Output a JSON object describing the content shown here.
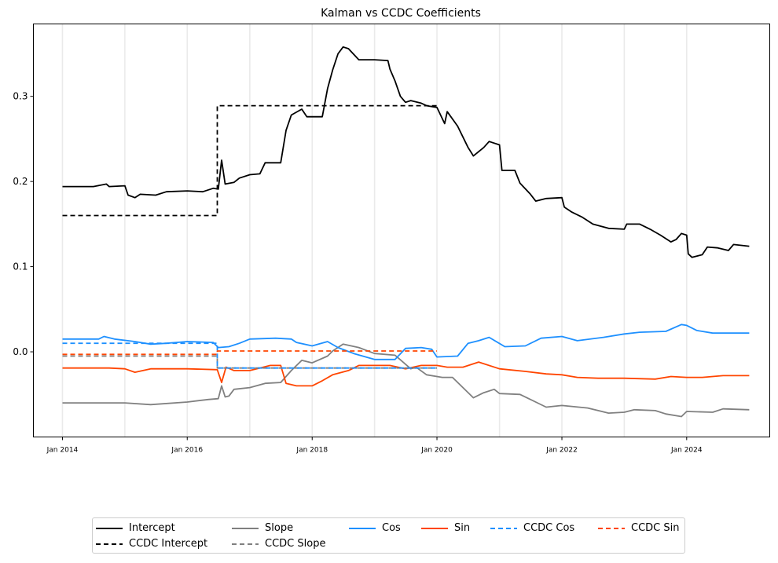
{
  "chart_data": {
    "type": "line",
    "title": "Kalman vs CCDC Coefficients",
    "xlabel": "",
    "ylabel": "",
    "x_range": [
      "2013-07-15",
      "2025-05-01"
    ],
    "ylim": [
      -0.1,
      0.385
    ],
    "yticks": [
      0.0,
      0.1,
      0.2,
      0.3
    ],
    "ytick_labels": [
      "0.0",
      "0.1",
      "0.2",
      "0.3"
    ],
    "xticks": [
      "2014-01-01",
      "2016-01-01",
      "2018-01-01",
      "2020-01-01",
      "2022-01-01",
      "2024-01-01"
    ],
    "xtick_labels": [
      "Jan 2014",
      "Jan 2016",
      "Jan 2018",
      "Jan 2020",
      "Jan 2022",
      "Jan 2024"
    ],
    "vlines": [
      "2014-01-01",
      "2015-01-01",
      "2016-01-01",
      "2017-01-01",
      "2018-01-01",
      "2019-01-01",
      "2020-01-01",
      "2021-01-01",
      "2022-01-01",
      "2023-01-01",
      "2024-01-01"
    ],
    "legend_placement": "bottom-center",
    "series": [
      {
        "name": "Intercept",
        "color": "#000000",
        "dash": false,
        "points": [
          [
            "2014-01-01",
            0.194
          ],
          [
            "2014-07-01",
            0.194
          ],
          [
            "2014-09-15",
            0.197
          ],
          [
            "2014-10-01",
            0.194
          ],
          [
            "2015-01-01",
            0.195
          ],
          [
            "2015-01-20",
            0.184
          ],
          [
            "2015-03-01",
            0.181
          ],
          [
            "2015-04-01",
            0.185
          ],
          [
            "2015-07-01",
            0.184
          ],
          [
            "2015-09-01",
            0.188
          ],
          [
            "2016-01-01",
            0.189
          ],
          [
            "2016-04-01",
            0.188
          ],
          [
            "2016-06-01",
            0.192
          ],
          [
            "2016-07-01",
            0.191
          ],
          [
            "2016-07-20",
            0.225
          ],
          [
            "2016-08-10",
            0.197
          ],
          [
            "2016-10-01",
            0.199
          ],
          [
            "2016-11-01",
            0.204
          ],
          [
            "2017-01-01",
            0.208
          ],
          [
            "2017-03-01",
            0.209
          ],
          [
            "2017-04-01",
            0.222
          ],
          [
            "2017-07-01",
            0.222
          ],
          [
            "2017-08-01",
            0.26
          ],
          [
            "2017-09-01",
            0.278
          ],
          [
            "2017-11-01",
            0.285
          ],
          [
            "2017-12-01",
            0.276
          ],
          [
            "2018-03-01",
            0.276
          ],
          [
            "2018-04-01",
            0.309
          ],
          [
            "2018-05-01",
            0.331
          ],
          [
            "2018-06-01",
            0.35
          ],
          [
            "2018-07-01",
            0.358
          ],
          [
            "2018-08-01",
            0.356
          ],
          [
            "2018-10-01",
            0.343
          ],
          [
            "2019-01-01",
            0.343
          ],
          [
            "2019-03-20",
            0.342
          ],
          [
            "2019-04-01",
            0.332
          ],
          [
            "2019-05-01",
            0.318
          ],
          [
            "2019-06-01",
            0.3
          ],
          [
            "2019-07-01",
            0.293
          ],
          [
            "2019-08-01",
            0.295
          ],
          [
            "2019-10-01",
            0.292
          ],
          [
            "2019-11-01",
            0.289
          ],
          [
            "2020-01-01",
            0.287
          ],
          [
            "2020-02-15",
            0.268
          ],
          [
            "2020-03-01",
            0.282
          ],
          [
            "2020-05-01",
            0.265
          ],
          [
            "2020-07-01",
            0.24
          ],
          [
            "2020-08-01",
            0.23
          ],
          [
            "2020-10-01",
            0.24
          ],
          [
            "2020-11-01",
            0.247
          ],
          [
            "2021-01-01",
            0.243
          ],
          [
            "2021-01-15",
            0.213
          ],
          [
            "2021-04-01",
            0.213
          ],
          [
            "2021-05-01",
            0.198
          ],
          [
            "2021-07-01",
            0.185
          ],
          [
            "2021-08-01",
            0.177
          ],
          [
            "2021-10-01",
            0.18
          ],
          [
            "2022-01-01",
            0.181
          ],
          [
            "2022-01-15",
            0.17
          ],
          [
            "2022-03-01",
            0.164
          ],
          [
            "2022-05-01",
            0.158
          ],
          [
            "2022-07-01",
            0.15
          ],
          [
            "2022-10-01",
            0.145
          ],
          [
            "2023-01-01",
            0.144
          ],
          [
            "2023-01-15",
            0.15
          ],
          [
            "2023-04-01",
            0.15
          ],
          [
            "2023-06-01",
            0.144
          ],
          [
            "2023-08-01",
            0.137
          ],
          [
            "2023-10-01",
            0.129
          ],
          [
            "2023-11-01",
            0.132
          ],
          [
            "2023-12-01",
            0.139
          ],
          [
            "2024-01-01",
            0.137
          ],
          [
            "2024-01-10",
            0.115
          ],
          [
            "2024-02-01",
            0.111
          ],
          [
            "2024-04-01",
            0.114
          ],
          [
            "2024-05-01",
            0.123
          ],
          [
            "2024-07-01",
            0.122
          ],
          [
            "2024-09-01",
            0.119
          ],
          [
            "2024-10-01",
            0.126
          ],
          [
            "2025-01-01",
            0.124
          ]
        ]
      },
      {
        "name": "CCDC Intercept",
        "color": "#000000",
        "dash": true,
        "points": [
          [
            "2014-01-01",
            0.16
          ],
          [
            "2016-06-25",
            0.16
          ],
          [
            "2016-06-25",
            0.289
          ],
          [
            "2020-01-01",
            0.289
          ]
        ]
      },
      {
        "name": "Slope",
        "color": "#808080",
        "dash": false,
        "points": [
          [
            "2014-01-01",
            -0.06
          ],
          [
            "2014-10-01",
            -0.06
          ],
          [
            "2015-01-01",
            -0.06
          ],
          [
            "2015-06-01",
            -0.062
          ],
          [
            "2016-01-01",
            -0.059
          ],
          [
            "2016-05-01",
            -0.056
          ],
          [
            "2016-07-01",
            -0.055
          ],
          [
            "2016-07-20",
            -0.04
          ],
          [
            "2016-08-10",
            -0.053
          ],
          [
            "2016-09-01",
            -0.052
          ],
          [
            "2016-10-01",
            -0.044
          ],
          [
            "2017-01-01",
            -0.042
          ],
          [
            "2017-04-01",
            -0.037
          ],
          [
            "2017-07-01",
            -0.036
          ],
          [
            "2017-09-01",
            -0.022
          ],
          [
            "2017-11-01",
            -0.01
          ],
          [
            "2018-01-01",
            -0.013
          ],
          [
            "2018-04-01",
            -0.005
          ],
          [
            "2018-05-01",
            0.001
          ],
          [
            "2018-07-01",
            0.009
          ],
          [
            "2018-10-01",
            0.005
          ],
          [
            "2019-01-01",
            -0.002
          ],
          [
            "2019-05-01",
            -0.004
          ],
          [
            "2019-08-01",
            -0.02
          ],
          [
            "2019-09-01",
            -0.018
          ],
          [
            "2019-11-01",
            -0.027
          ],
          [
            "2020-02-01",
            -0.03
          ],
          [
            "2020-04-01",
            -0.03
          ],
          [
            "2020-06-01",
            -0.042
          ],
          [
            "2020-08-01",
            -0.054
          ],
          [
            "2020-10-01",
            -0.048
          ],
          [
            "2020-12-01",
            -0.044
          ],
          [
            "2021-01-01",
            -0.049
          ],
          [
            "2021-05-01",
            -0.05
          ],
          [
            "2021-08-01",
            -0.059
          ],
          [
            "2021-10-01",
            -0.065
          ],
          [
            "2022-01-01",
            -0.063
          ],
          [
            "2022-06-01",
            -0.066
          ],
          [
            "2022-10-01",
            -0.072
          ],
          [
            "2023-01-01",
            -0.071
          ],
          [
            "2023-03-01",
            -0.068
          ],
          [
            "2023-07-01",
            -0.069
          ],
          [
            "2023-09-01",
            -0.073
          ],
          [
            "2023-12-01",
            -0.076
          ],
          [
            "2024-01-01",
            -0.07
          ],
          [
            "2024-06-01",
            -0.071
          ],
          [
            "2024-08-01",
            -0.067
          ],
          [
            "2025-01-01",
            -0.068
          ]
        ]
      },
      {
        "name": "CCDC Slope",
        "color": "#808080",
        "dash": true,
        "points": [
          [
            "2014-01-01",
            -0.005
          ],
          [
            "2016-06-25",
            -0.005
          ],
          [
            "2016-06-25",
            -0.019
          ],
          [
            "2020-01-01",
            -0.019
          ]
        ]
      },
      {
        "name": "Cos",
        "color": "#1e90ff",
        "dash": false,
        "points": [
          [
            "2014-01-01",
            0.015
          ],
          [
            "2014-08-01",
            0.015
          ],
          [
            "2014-09-01",
            0.018
          ],
          [
            "2014-11-01",
            0.015
          ],
          [
            "2015-03-01",
            0.012
          ],
          [
            "2015-06-01",
            0.009
          ],
          [
            "2015-09-01",
            0.01
          ],
          [
            "2016-01-01",
            0.012
          ],
          [
            "2016-06-01",
            0.011
          ],
          [
            "2016-07-01",
            0.005
          ],
          [
            "2016-09-01",
            0.006
          ],
          [
            "2016-11-01",
            0.01
          ],
          [
            "2017-01-01",
            0.015
          ],
          [
            "2017-06-01",
            0.016
          ],
          [
            "2017-09-01",
            0.015
          ],
          [
            "2017-10-01",
            0.011
          ],
          [
            "2018-01-01",
            0.007
          ],
          [
            "2018-04-01",
            0.012
          ],
          [
            "2018-06-01",
            0.005
          ],
          [
            "2018-09-01",
            -0.002
          ],
          [
            "2019-01-01",
            -0.009
          ],
          [
            "2019-05-01",
            -0.009
          ],
          [
            "2019-07-01",
            0.004
          ],
          [
            "2019-10-01",
            0.005
          ],
          [
            "2019-12-01",
            0.003
          ],
          [
            "2020-01-01",
            -0.006
          ],
          [
            "2020-05-01",
            -0.005
          ],
          [
            "2020-07-01",
            0.01
          ],
          [
            "2020-09-01",
            0.013
          ],
          [
            "2020-11-01",
            0.017
          ],
          [
            "2021-02-01",
            0.006
          ],
          [
            "2021-06-01",
            0.007
          ],
          [
            "2021-09-01",
            0.016
          ],
          [
            "2022-01-01",
            0.018
          ],
          [
            "2022-04-01",
            0.013
          ],
          [
            "2022-09-01",
            0.017
          ],
          [
            "2023-01-01",
            0.021
          ],
          [
            "2023-04-01",
            0.023
          ],
          [
            "2023-09-01",
            0.024
          ],
          [
            "2023-12-01",
            0.032
          ],
          [
            "2024-01-01",
            0.031
          ],
          [
            "2024-03-01",
            0.025
          ],
          [
            "2024-06-01",
            0.022
          ],
          [
            "2024-09-01",
            0.022
          ],
          [
            "2025-01-01",
            0.022
          ]
        ]
      },
      {
        "name": "Sin",
        "color": "#ff4500",
        "dash": false,
        "points": [
          [
            "2014-01-01",
            -0.019
          ],
          [
            "2014-10-01",
            -0.019
          ],
          [
            "2015-01-01",
            -0.02
          ],
          [
            "2015-03-01",
            -0.024
          ],
          [
            "2015-06-01",
            -0.02
          ],
          [
            "2016-01-01",
            -0.02
          ],
          [
            "2016-06-25",
            -0.021
          ],
          [
            "2016-07-20",
            -0.036
          ],
          [
            "2016-08-15",
            -0.018
          ],
          [
            "2016-10-01",
            -0.022
          ],
          [
            "2017-01-01",
            -0.022
          ],
          [
            "2017-05-01",
            -0.016
          ],
          [
            "2017-07-01",
            -0.016
          ],
          [
            "2017-08-01",
            -0.037
          ],
          [
            "2017-10-01",
            -0.04
          ],
          [
            "2018-01-01",
            -0.04
          ],
          [
            "2018-03-01",
            -0.034
          ],
          [
            "2018-05-01",
            -0.027
          ],
          [
            "2018-08-01",
            -0.022
          ],
          [
            "2018-10-01",
            -0.016
          ],
          [
            "2019-04-01",
            -0.016
          ],
          [
            "2019-07-01",
            -0.02
          ],
          [
            "2019-10-01",
            -0.016
          ],
          [
            "2020-01-01",
            -0.016
          ],
          [
            "2020-03-01",
            -0.018
          ],
          [
            "2020-06-01",
            -0.018
          ],
          [
            "2020-09-01",
            -0.012
          ],
          [
            "2021-01-01",
            -0.02
          ],
          [
            "2021-06-01",
            -0.023
          ],
          [
            "2021-10-01",
            -0.026
          ],
          [
            "2022-01-01",
            -0.027
          ],
          [
            "2022-04-01",
            -0.03
          ],
          [
            "2022-08-01",
            -0.031
          ],
          [
            "2023-01-01",
            -0.031
          ],
          [
            "2023-07-01",
            -0.032
          ],
          [
            "2023-10-01",
            -0.029
          ],
          [
            "2024-01-01",
            -0.03
          ],
          [
            "2024-04-01",
            -0.03
          ],
          [
            "2024-08-01",
            -0.028
          ],
          [
            "2025-01-01",
            -0.028
          ]
        ]
      },
      {
        "name": "CCDC Cos",
        "color": "#1e90ff",
        "dash": true,
        "points": [
          [
            "2014-01-01",
            0.01
          ],
          [
            "2016-06-25",
            0.01
          ],
          [
            "2016-06-25",
            -0.019
          ],
          [
            "2020-01-01",
            -0.019
          ]
        ]
      },
      {
        "name": "CCDC Sin",
        "color": "#ff4500",
        "dash": true,
        "points": [
          [
            "2014-01-01",
            -0.003
          ],
          [
            "2016-06-25",
            -0.003
          ],
          [
            "2016-06-25",
            0.001
          ],
          [
            "2020-01-01",
            0.001
          ]
        ]
      }
    ]
  }
}
